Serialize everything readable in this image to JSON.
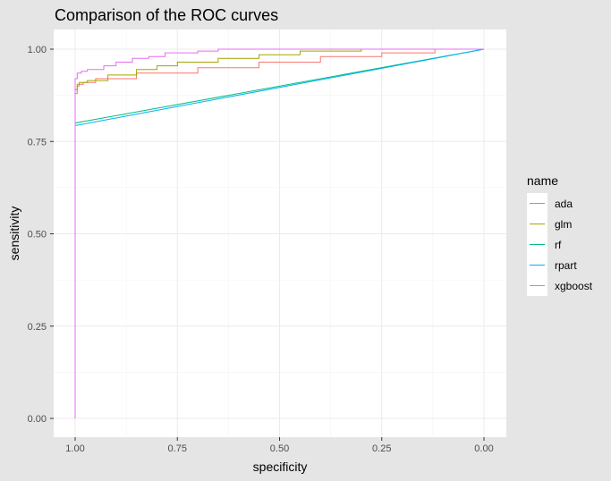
{
  "chart_data": {
    "type": "line",
    "title": "Comparison of the ROC curves",
    "xlabel": "specificity",
    "ylabel": "sensitivity",
    "x_reversed": true,
    "xlim": [
      1.0,
      0.0
    ],
    "ylim": [
      0.0,
      1.0
    ],
    "x_ticks": [
      "1.00",
      "0.75",
      "0.50",
      "0.25",
      "0.00"
    ],
    "y_ticks": [
      "0.00",
      "0.25",
      "0.50",
      "0.75",
      "1.00"
    ],
    "grid": true,
    "legend_title": "name",
    "legend_position": "right",
    "series": [
      {
        "name": "ada",
        "color": "#F8766D",
        "points": [
          [
            1.0,
            0.0
          ],
          [
            1.0,
            0.86
          ],
          [
            0.995,
            0.88
          ],
          [
            0.99,
            0.9
          ],
          [
            0.98,
            0.905
          ],
          [
            0.95,
            0.91
          ],
          [
            0.85,
            0.92
          ],
          [
            0.7,
            0.935
          ],
          [
            0.55,
            0.95
          ],
          [
            0.4,
            0.965
          ],
          [
            0.25,
            0.98
          ],
          [
            0.12,
            0.99
          ],
          [
            0.0,
            1.0
          ]
        ]
      },
      {
        "name": "glm",
        "color": "#A3A500",
        "points": [
          [
            1.0,
            0.0
          ],
          [
            1.0,
            0.86
          ],
          [
            0.995,
            0.89
          ],
          [
            0.99,
            0.905
          ],
          [
            0.97,
            0.91
          ],
          [
            0.92,
            0.915
          ],
          [
            0.85,
            0.93
          ],
          [
            0.8,
            0.945
          ],
          [
            0.75,
            0.955
          ],
          [
            0.65,
            0.965
          ],
          [
            0.55,
            0.975
          ],
          [
            0.45,
            0.985
          ],
          [
            0.3,
            0.995
          ],
          [
            0.25,
            1.0
          ],
          [
            0.0,
            1.0
          ]
        ]
      },
      {
        "name": "rf",
        "color": "#00BF7D",
        "points": [
          [
            1.0,
            0.0
          ],
          [
            1.0,
            0.8
          ],
          [
            0.0,
            1.0
          ]
        ]
      },
      {
        "name": "rpart",
        "color": "#00B0F6",
        "points": [
          [
            1.0,
            0.0
          ],
          [
            1.0,
            0.793
          ],
          [
            0.0,
            1.0
          ]
        ]
      },
      {
        "name": "xgboost",
        "color": "#E76BF3",
        "points": [
          [
            1.0,
            0.0
          ],
          [
            1.0,
            0.88
          ],
          [
            0.995,
            0.92
          ],
          [
            0.985,
            0.935
          ],
          [
            0.97,
            0.94
          ],
          [
            0.93,
            0.945
          ],
          [
            0.9,
            0.955
          ],
          [
            0.86,
            0.965
          ],
          [
            0.82,
            0.975
          ],
          [
            0.78,
            0.98
          ],
          [
            0.7,
            0.99
          ],
          [
            0.65,
            0.995
          ],
          [
            0.5,
            1.0
          ],
          [
            0.0,
            1.0
          ]
        ]
      }
    ]
  }
}
